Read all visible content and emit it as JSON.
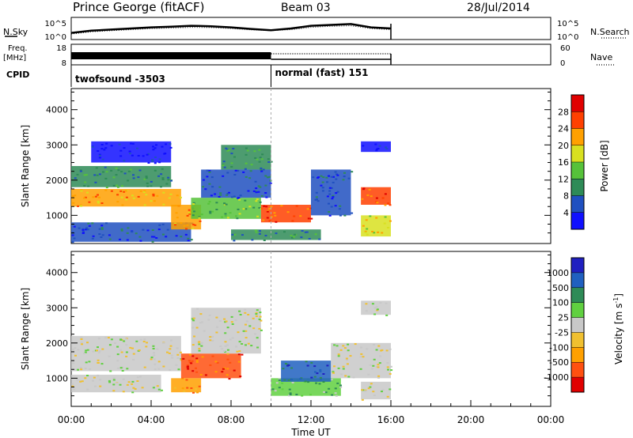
{
  "header": {
    "station": "Prince George (fitACF)",
    "beam": "Beam 03",
    "date": "28/Jul/2014"
  },
  "left_labels": {
    "nsky": "N.Sky",
    "freq": "Freq.",
    "freq_unit": "[MHz]",
    "cpid": "CPID"
  },
  "right_labels": {
    "nsearch": "N.Search",
    "nave": "Nave"
  },
  "chart_data": [
    {
      "id": "noise-panel",
      "type": "line",
      "left_axis": {
        "ticks": [
          "10^5",
          "10^0"
        ]
      },
      "right_axis": {
        "ticks": [
          "10^5",
          "10^0"
        ]
      },
      "series": [
        {
          "name": "N.Sky",
          "x": [
            0,
            1,
            2,
            3,
            4,
            5,
            6,
            7,
            8,
            9,
            10,
            11,
            12,
            13,
            14,
            15,
            16
          ],
          "y": [
            0.3,
            0.4,
            0.45,
            0.5,
            0.55,
            0.58,
            0.62,
            0.6,
            0.55,
            0.48,
            0.42,
            0.5,
            0.62,
            0.66,
            0.7,
            0.55,
            0.5
          ]
        },
        {
          "name": "N.Search",
          "x": [
            0,
            1,
            2,
            3,
            4,
            5,
            6,
            7,
            8,
            9,
            10,
            11,
            12,
            13,
            14,
            15,
            16
          ],
          "y": [
            0.25,
            0.35,
            0.4,
            0.45,
            0.5,
            0.52,
            0.55,
            0.54,
            0.5,
            0.44,
            0.4,
            0.45,
            0.55,
            0.6,
            0.62,
            0.5,
            0.45
          ]
        }
      ]
    },
    {
      "id": "freq-panel",
      "type": "line",
      "left_axis": {
        "ticks": [
          "18",
          "8"
        ]
      },
      "right_axis": {
        "ticks": [
          "60",
          "0"
        ]
      },
      "segments": [
        {
          "start": 0,
          "end": 10,
          "style": "dense"
        },
        {
          "start": 10,
          "end": 16,
          "style": "dotted"
        }
      ]
    },
    {
      "id": "cpid-panel",
      "type": "table",
      "segments": [
        {
          "start": 0,
          "label": "twofsound -3503"
        },
        {
          "start": 10,
          "label": "normal (fast) 151"
        }
      ]
    },
    {
      "id": "power-panel",
      "type": "heatmap",
      "ylabel": "Slant Range [km]",
      "yticks": [
        1000,
        2000,
        3000,
        4000
      ],
      "ylim": [
        200,
        4600
      ],
      "xlim": [
        0,
        24
      ],
      "colorbar": {
        "label": "Power [dB]",
        "ticks": [
          "4",
          "8",
          "12",
          "16",
          "20",
          "24",
          "28"
        ],
        "colors": [
          "#1010ff",
          "#2050c0",
          "#2e8b57",
          "#56c23a",
          "#d8e020",
          "#ffa000",
          "#ff4000",
          "#e00000"
        ]
      },
      "blobs": [
        {
          "t0": 0.0,
          "t1": 5.5,
          "r0": 1250,
          "r1": 1750,
          "level": 5
        },
        {
          "t0": 0.0,
          "t1": 5.0,
          "r0": 1800,
          "r1": 2400,
          "level": 2
        },
        {
          "t0": 0.0,
          "t1": 6.0,
          "r0": 250,
          "r1": 800,
          "level": 1
        },
        {
          "t0": 1.0,
          "t1": 5.0,
          "r0": 2500,
          "r1": 3100,
          "level": 0
        },
        {
          "t0": 5.0,
          "t1": 6.5,
          "r0": 600,
          "r1": 1300,
          "level": 5
        },
        {
          "t0": 6.0,
          "t1": 9.5,
          "r0": 900,
          "r1": 1500,
          "level": 3
        },
        {
          "t0": 6.5,
          "t1": 10.0,
          "r0": 1500,
          "r1": 2300,
          "level": 1
        },
        {
          "t0": 7.5,
          "t1": 10.0,
          "r0": 2300,
          "r1": 3000,
          "level": 2
        },
        {
          "t0": 9.5,
          "t1": 12.0,
          "r0": 800,
          "r1": 1300,
          "level": 6
        },
        {
          "t0": 8.0,
          "t1": 12.5,
          "r0": 300,
          "r1": 600,
          "level": 2
        },
        {
          "t0": 12.0,
          "t1": 14.0,
          "r0": 1000,
          "r1": 2300,
          "level": 1
        },
        {
          "t0": 14.5,
          "t1": 16.0,
          "r0": 1300,
          "r1": 1800,
          "level": 6
        },
        {
          "t0": 14.5,
          "t1": 16.0,
          "r0": 400,
          "r1": 1000,
          "level": 4
        },
        {
          "t0": 14.5,
          "t1": 16.0,
          "r0": 2800,
          "r1": 3100,
          "level": 0
        }
      ]
    },
    {
      "id": "velocity-panel",
      "type": "heatmap",
      "ylabel": "Slant Range [km]",
      "yticks": [
        1000,
        2000,
        3000,
        4000
      ],
      "ylim": [
        200,
        4600
      ],
      "xlim": [
        0,
        24
      ],
      "xticks": [
        "00:00",
        "04:00",
        "08:00",
        "12:00",
        "16:00",
        "20:00",
        "00:00"
      ],
      "xlabel": "Time UT",
      "colorbar": {
        "label": "Velocity [m s",
        "label_sup": "-1",
        "label_end": "]",
        "ticks": [
          "-1000",
          "-500",
          "-100",
          "-25",
          "25",
          "100",
          "500",
          "1000"
        ],
        "colors": [
          "#e00000",
          "#ff5010",
          "#ffa000",
          "#f0c030",
          "#c8c8c8",
          "#60d040",
          "#2e8b57",
          "#2060c0",
          "#2020c0"
        ]
      },
      "blobs": [
        {
          "t0": 0.0,
          "t1": 5.5,
          "r0": 1200,
          "r1": 2200,
          "level": 4
        },
        {
          "t0": 0.0,
          "t1": 4.5,
          "r0": 600,
          "r1": 1100,
          "level": 4
        },
        {
          "t0": 5.5,
          "t1": 8.5,
          "r0": 1000,
          "r1": 1700,
          "level": 1
        },
        {
          "t0": 5.0,
          "t1": 6.5,
          "r0": 600,
          "r1": 1000,
          "level": 2
        },
        {
          "t0": 6.0,
          "t1": 9.5,
          "r0": 1700,
          "r1": 3000,
          "level": 4
        },
        {
          "t0": 10.0,
          "t1": 13.5,
          "r0": 500,
          "r1": 1000,
          "level": 5
        },
        {
          "t0": 10.5,
          "t1": 13.0,
          "r0": 900,
          "r1": 1500,
          "level": 7
        },
        {
          "t0": 13.0,
          "t1": 16.0,
          "r0": 1000,
          "r1": 2000,
          "level": 4
        },
        {
          "t0": 14.5,
          "t1": 16.0,
          "r0": 400,
          "r1": 900,
          "level": 4
        },
        {
          "t0": 14.5,
          "t1": 16.0,
          "r0": 2800,
          "r1": 3200,
          "level": 4
        }
      ]
    }
  ]
}
